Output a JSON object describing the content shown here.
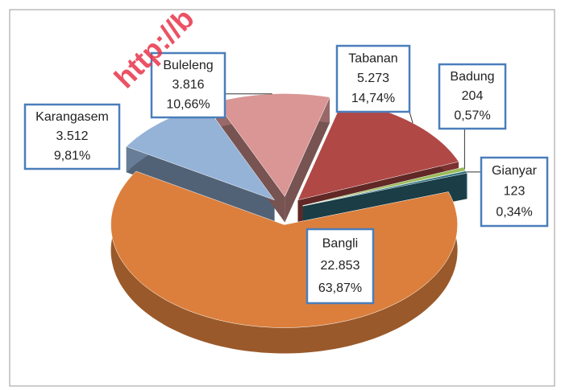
{
  "chart_data": {
    "type": "pie3d",
    "watermark": "http://b",
    "categories": [
      "Tabanan",
      "Badung",
      "Gianyar",
      "Bangli",
      "Karangasem",
      "Buleleng"
    ],
    "values": [
      5273,
      204,
      123,
      22853,
      3512,
      3816
    ],
    "value_labels": [
      "5.273",
      "204",
      "123",
      "22.853",
      "3.512",
      "3.816"
    ],
    "shares": [
      14.74,
      0.57,
      0.34,
      63.87,
      9.81,
      10.66
    ],
    "share_labels": [
      "14,74%",
      "0,57%",
      "0,34%",
      "63,87%",
      "9,81%",
      "10,66%"
    ],
    "colors": [
      "#b04845",
      "#9bbb59",
      "#2f6f80",
      "#dc7f3c",
      "#95b3d7",
      "#d99694"
    ]
  }
}
